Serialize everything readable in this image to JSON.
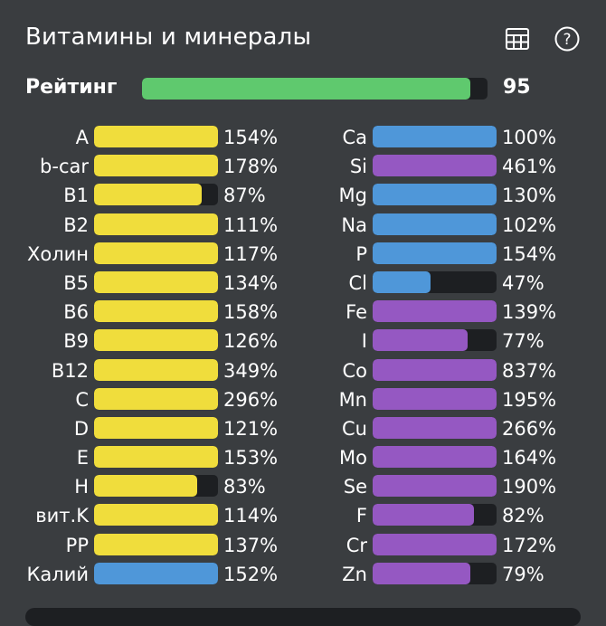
{
  "header": {
    "title": "Витамины и минералы",
    "icons": [
      "table-icon",
      "help-icon"
    ]
  },
  "rating": {
    "label": "Рейтинг",
    "value": "95",
    "fraction": 0.95,
    "color": "#5fc96e"
  },
  "colors": {
    "vitamin": "#f0dd3c",
    "mineral_blue": "#4f97d9",
    "mineral_purple": "#9558c2",
    "track": "#1d1f22"
  },
  "vitamins": [
    {
      "name": "A",
      "pct": "154%",
      "value": 154,
      "color": "#f0dd3c"
    },
    {
      "name": "b-car",
      "pct": "178%",
      "value": 178,
      "color": "#f0dd3c"
    },
    {
      "name": "B1",
      "pct": "87%",
      "value": 87,
      "color": "#f0dd3c"
    },
    {
      "name": "B2",
      "pct": "111%",
      "value": 111,
      "color": "#f0dd3c"
    },
    {
      "name": "Холин",
      "pct": "117%",
      "value": 117,
      "color": "#f0dd3c"
    },
    {
      "name": "B5",
      "pct": "134%",
      "value": 134,
      "color": "#f0dd3c"
    },
    {
      "name": "B6",
      "pct": "158%",
      "value": 158,
      "color": "#f0dd3c"
    },
    {
      "name": "B9",
      "pct": "126%",
      "value": 126,
      "color": "#f0dd3c"
    },
    {
      "name": "B12",
      "pct": "349%",
      "value": 349,
      "color": "#f0dd3c"
    },
    {
      "name": "C",
      "pct": "296%",
      "value": 296,
      "color": "#f0dd3c"
    },
    {
      "name": "D",
      "pct": "121%",
      "value": 121,
      "color": "#f0dd3c"
    },
    {
      "name": "E",
      "pct": "153%",
      "value": 153,
      "color": "#f0dd3c"
    },
    {
      "name": "H",
      "pct": "83%",
      "value": 83,
      "color": "#f0dd3c"
    },
    {
      "name": "вит.K",
      "pct": "114%",
      "value": 114,
      "color": "#f0dd3c"
    },
    {
      "name": "PP",
      "pct": "137%",
      "value": 137,
      "color": "#f0dd3c"
    },
    {
      "name": "Калий",
      "pct": "152%",
      "value": 152,
      "color": "#4f97d9"
    }
  ],
  "minerals": [
    {
      "name": "Ca",
      "pct": "100%",
      "value": 100,
      "color": "#4f97d9"
    },
    {
      "name": "Si",
      "pct": "461%",
      "value": 461,
      "color": "#9558c2"
    },
    {
      "name": "Mg",
      "pct": "130%",
      "value": 130,
      "color": "#4f97d9"
    },
    {
      "name": "Na",
      "pct": "102%",
      "value": 102,
      "color": "#4f97d9"
    },
    {
      "name": "P",
      "pct": "154%",
      "value": 154,
      "color": "#4f97d9"
    },
    {
      "name": "Cl",
      "pct": "47%",
      "value": 47,
      "color": "#4f97d9"
    },
    {
      "name": "Fe",
      "pct": "139%",
      "value": 139,
      "color": "#9558c2"
    },
    {
      "name": "I",
      "pct": "77%",
      "value": 77,
      "color": "#9558c2"
    },
    {
      "name": "Co",
      "pct": "837%",
      "value": 837,
      "color": "#9558c2"
    },
    {
      "name": "Mn",
      "pct": "195%",
      "value": 195,
      "color": "#9558c2"
    },
    {
      "name": "Cu",
      "pct": "266%",
      "value": 266,
      "color": "#9558c2"
    },
    {
      "name": "Mo",
      "pct": "164%",
      "value": 164,
      "color": "#9558c2"
    },
    {
      "name": "Se",
      "pct": "190%",
      "value": 190,
      "color": "#9558c2"
    },
    {
      "name": "F",
      "pct": "82%",
      "value": 82,
      "color": "#9558c2"
    },
    {
      "name": "Cr",
      "pct": "172%",
      "value": 172,
      "color": "#9558c2"
    },
    {
      "name": "Zn",
      "pct": "79%",
      "value": 79,
      "color": "#9558c2"
    }
  ]
}
